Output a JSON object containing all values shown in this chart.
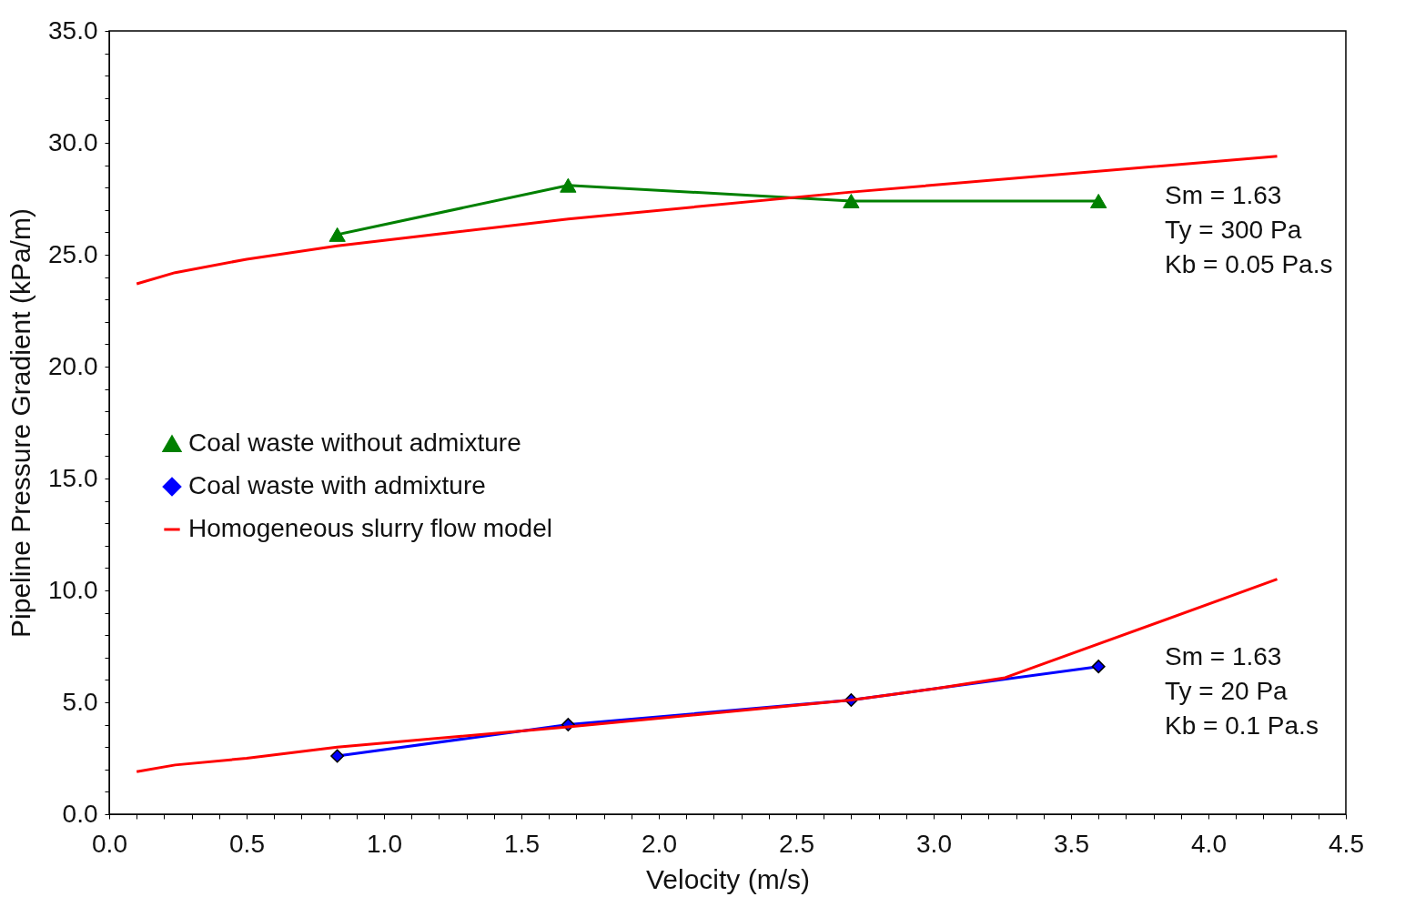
{
  "chart_data": {
    "type": "line",
    "xlabel": "Velocity (m/s)",
    "ylabel": "Pipeline Pressure Gradient (kPa/m)",
    "xlim": [
      0,
      4.5
    ],
    "ylim": [
      0,
      35
    ],
    "xticks": [
      {
        "value": 0,
        "label": "0.0"
      },
      {
        "value": 0.1,
        "label": null
      },
      {
        "value": 0.2,
        "label": null
      },
      {
        "value": 0.3,
        "label": null
      },
      {
        "value": 0.4,
        "label": null
      },
      {
        "value": 0.5,
        "label": "0.5"
      },
      {
        "value": 0.6,
        "label": null
      },
      {
        "value": 0.7,
        "label": null
      },
      {
        "value": 0.8,
        "label": null
      },
      {
        "value": 0.9,
        "label": null
      },
      {
        "value": 1,
        "label": "1.0"
      },
      {
        "value": 1.1,
        "label": null
      },
      {
        "value": 1.2,
        "label": null
      },
      {
        "value": 1.3,
        "label": null
      },
      {
        "value": 1.4,
        "label": null
      },
      {
        "value": 1.5,
        "label": "1.5"
      },
      {
        "value": 1.6,
        "label": null
      },
      {
        "value": 1.7,
        "label": null
      },
      {
        "value": 1.8,
        "label": null
      },
      {
        "value": 1.9,
        "label": null
      },
      {
        "value": 2,
        "label": "2.0"
      },
      {
        "value": 2.1,
        "label": null
      },
      {
        "value": 2.2,
        "label": null
      },
      {
        "value": 2.3,
        "label": null
      },
      {
        "value": 2.4,
        "label": null
      },
      {
        "value": 2.5,
        "label": "2.5"
      },
      {
        "value": 2.6,
        "label": null
      },
      {
        "value": 2.7,
        "label": null
      },
      {
        "value": 2.8,
        "label": null
      },
      {
        "value": 2.9,
        "label": null
      },
      {
        "value": 3,
        "label": "3.0"
      },
      {
        "value": 3.1,
        "label": null
      },
      {
        "value": 3.2,
        "label": null
      },
      {
        "value": 3.3,
        "label": null
      },
      {
        "value": 3.4,
        "label": null
      },
      {
        "value": 3.5,
        "label": "3.5"
      },
      {
        "value": 3.6,
        "label": null
      },
      {
        "value": 3.7,
        "label": null
      },
      {
        "value": 3.8,
        "label": null
      },
      {
        "value": 3.9,
        "label": null
      },
      {
        "value": 4,
        "label": "4.0"
      },
      {
        "value": 4.1,
        "label": null
      },
      {
        "value": 4.2,
        "label": null
      },
      {
        "value": 4.3,
        "label": null
      },
      {
        "value": 4.4,
        "label": null
      },
      {
        "value": 4.5,
        "label": "4.5"
      }
    ],
    "yticks": [
      {
        "value": 0,
        "label": "0.0"
      },
      {
        "value": 1,
        "label": null
      },
      {
        "value": 2,
        "label": null
      },
      {
        "value": 3,
        "label": null
      },
      {
        "value": 4,
        "label": null
      },
      {
        "value": 5,
        "label": "5.0"
      },
      {
        "value": 6,
        "label": null
      },
      {
        "value": 7,
        "label": null
      },
      {
        "value": 8,
        "label": null
      },
      {
        "value": 9,
        "label": null
      },
      {
        "value": 10,
        "label": "10.0"
      },
      {
        "value": 11,
        "label": null
      },
      {
        "value": 12,
        "label": null
      },
      {
        "value": 13,
        "label": null
      },
      {
        "value": 14,
        "label": null
      },
      {
        "value": 15,
        "label": "15.0"
      },
      {
        "value": 16,
        "label": null
      },
      {
        "value": 17,
        "label": null
      },
      {
        "value": 18,
        "label": null
      },
      {
        "value": 19,
        "label": null
      },
      {
        "value": 20,
        "label": "20.0"
      },
      {
        "value": 21,
        "label": null
      },
      {
        "value": 22,
        "label": null
      },
      {
        "value": 23,
        "label": null
      },
      {
        "value": 24,
        "label": null
      },
      {
        "value": 25,
        "label": "25.0"
      },
      {
        "value": 26,
        "label": null
      },
      {
        "value": 27,
        "label": null
      },
      {
        "value": 28,
        "label": null
      },
      {
        "value": 29,
        "label": null
      },
      {
        "value": 30,
        "label": "30.0"
      },
      {
        "value": 31,
        "label": null
      },
      {
        "value": 32,
        "label": null
      },
      {
        "value": 33,
        "label": null
      },
      {
        "value": 34,
        "label": null
      },
      {
        "value": 35,
        "label": "35.0"
      }
    ],
    "grid": false,
    "legend": "left",
    "line_style": "solid",
    "series": [
      {
        "name": "Coal waste without admixture",
        "color": "#008000",
        "marker": "triangle",
        "x": [
          0.83,
          1.67,
          2.7,
          3.6
        ],
        "values": [
          25.9,
          28.1,
          27.4,
          27.4
        ]
      },
      {
        "name": "Coal waste with admixture",
        "color": "#0000ff",
        "marker": "diamond",
        "x": [
          0.83,
          1.67,
          2.7,
          3.6
        ],
        "values": [
          2.6,
          4.0,
          5.1,
          6.6
        ]
      },
      {
        "name": "Homogeneous slurry flow model",
        "color": "#ff0000",
        "marker": "none",
        "x": [
          0.1,
          0.24,
          0.5,
          0.83,
          1.67,
          2.7,
          4.25
        ],
        "values": [
          23.7,
          24.2,
          24.8,
          25.4,
          26.6,
          27.8,
          29.4
        ]
      },
      {
        "color": "#ff0000",
        "marker": "none",
        "x": [
          0.1,
          0.24,
          0.5,
          0.83,
          1.67,
          2.7,
          3.0,
          3.26,
          4.25
        ],
        "values": [
          1.9,
          2.2,
          2.5,
          3.0,
          3.9,
          5.1,
          5.6,
          6.1,
          10.5
        ]
      }
    ],
    "annotations": [
      "Sm = 1.63\nTy = 300 Pa\nKb = 0.05 Pa.s",
      "Sm = 1.63\nTy = 20 Pa\nKb = 0.1 Pa.s"
    ]
  }
}
